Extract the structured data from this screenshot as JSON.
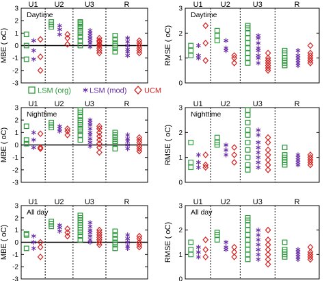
{
  "chart_data": {
    "type": "scatter",
    "groups": [
      "U1",
      "U2",
      "U3",
      "R"
    ],
    "series": [
      {
        "name": "LSM (org)",
        "marker": "square",
        "color": "#2a9a3a"
      },
      {
        "name": "LSM (mod)",
        "marker": "asterisk",
        "color": "#6a2fa8"
      },
      {
        "name": "UCM",
        "marker": "diamond",
        "color": "#d42020"
      }
    ],
    "panels": [
      {
        "id": "mbe-day",
        "metric": "MBE",
        "period": "Daytime",
        "ylabel": "MBE ( oC)",
        "ylim": [
          -3,
          3
        ],
        "yticks": [
          "-3",
          "-2",
          "-1",
          "0",
          "1",
          "2",
          "3"
        ],
        "zero_line": true,
        "points": {
          "U1": {
            "org": [
              0.9,
              0.0,
              -1.1
            ],
            "mod": [
              0.4,
              -0.4,
              -1.1
            ],
            "ucm": [
              0.5,
              -0.9,
              -2.0
            ]
          },
          "U2": {
            "org": [
              1.9,
              1.7,
              1.5
            ],
            "mod": [
              1.6,
              1.3,
              0.9
            ],
            "ucm": [
              0.9,
              0.6,
              0.1
            ]
          },
          "U3": {
            "org": [
              1.9,
              1.8,
              1.7,
              1.5,
              1.2,
              1.0,
              0.7,
              0.4,
              0.0
            ],
            "mod": [
              1.2,
              1.0,
              0.8,
              0.6,
              0.4,
              0.2,
              -0.1
            ],
            "ucm": [
              0.6,
              0.4,
              0.3,
              0.1,
              0.0,
              -0.2,
              -0.4,
              -0.6
            ]
          },
          "R": {
            "org": [
              0.8,
              0.5,
              0.2,
              0.0,
              -0.2,
              -0.5
            ],
            "mod": [
              0.6,
              0.3,
              0.0,
              -0.3,
              -0.5,
              -0.8
            ],
            "ucm": [
              0.4,
              0.2,
              0.0,
              -0.2,
              -0.4,
              -0.6
            ]
          }
        }
      },
      {
        "id": "rmse-day",
        "metric": "RMSE",
        "period": "Daytime",
        "ylabel": "RMSE ( oC)",
        "ylim": [
          0,
          3
        ],
        "yticks": [
          "0",
          "1",
          "2",
          "3"
        ],
        "zero_line": false,
        "points": {
          "U1": {
            "org": [
              1.5,
              1.3,
              1.1
            ],
            "mod": [
              1.5,
              1.1,
              1.0
            ],
            "ucm": [
              2.3,
              1.6,
              0.9
            ]
          },
          "U2": {
            "org": [
              2.1,
              1.9,
              1.7
            ],
            "mod": [
              1.7,
              1.4,
              1.3
            ],
            "ucm": [
              1.1,
              1.0,
              0.8
            ]
          },
          "U3": {
            "org": [
              2.3,
              2.2,
              2.0,
              1.8,
              1.6,
              1.4,
              1.2,
              1.0,
              0.8
            ],
            "mod": [
              1.9,
              1.8,
              1.6,
              1.4,
              1.3,
              1.1,
              1.0,
              0.8
            ],
            "ucm": [
              1.2,
              1.0,
              0.9,
              0.8,
              0.7,
              0.6,
              0.5
            ]
          },
          "R": {
            "org": [
              1.3,
              1.2,
              1.0,
              0.9,
              0.8,
              0.7
            ],
            "mod": [
              1.3,
              1.1,
              1.0,
              0.9,
              0.8,
              0.7
            ],
            "ucm": [
              1.5,
              1.2,
              1.1,
              1.0,
              0.9,
              0.8
            ]
          }
        }
      },
      {
        "id": "mbe-night",
        "metric": "MBE",
        "period": "Nighttime",
        "ylabel": "MBE ( oC)",
        "ylim": [
          -3,
          3
        ],
        "yticks": [
          "-3",
          "-2",
          "-1",
          "0",
          "1",
          "2",
          "3"
        ],
        "zero_line": true,
        "points": {
          "U1": {
            "org": [
              1.5,
              0.4,
              0.1
            ],
            "mod": [
              1.0,
              0.4,
              -0.2
            ],
            "ucm": [
              0.9,
              -0.2,
              -0.3
            ]
          },
          "U2": {
            "org": [
              1.8,
              1.6,
              1.4
            ],
            "mod": [
              1.5,
              1.3,
              1.1
            ],
            "ucm": [
              1.3,
              1.1,
              0.8
            ]
          },
          "U3": {
            "org": [
              2.8,
              2.6,
              2.3,
              2.0,
              1.8,
              1.6,
              1.3,
              1.1,
              0.8,
              0.4
            ],
            "mod": [
              2.0,
              1.8,
              1.6,
              1.3,
              1.0,
              0.8,
              0.5,
              0.2,
              -0.1
            ],
            "ucm": [
              1.5,
              1.3,
              1.0,
              0.7,
              0.4,
              0.1,
              -0.2,
              -0.6
            ]
          },
          "R": {
            "org": [
              1.0,
              0.8,
              0.6,
              0.3,
              0.1,
              -0.3
            ],
            "mod": [
              0.8,
              0.5,
              0.3,
              0.0,
              -0.3
            ],
            "ucm": [
              0.6,
              0.4,
              0.2,
              -0.1,
              -0.3,
              -0.5
            ]
          }
        }
      },
      {
        "id": "rmse-night",
        "metric": "RMSE",
        "period": "Nighttime",
        "ylabel": "RMSE ( oC)",
        "ylim": [
          0,
          3
        ],
        "yticks": [
          "0",
          "1",
          "2",
          "3"
        ],
        "zero_line": false,
        "points": {
          "U1": {
            "org": [
              1.6,
              0.8,
              0.6
            ],
            "mod": [
              1.1,
              0.8,
              0.6
            ],
            "ucm": [
              1.1,
              0.7,
              0.6
            ]
          },
          "U2": {
            "org": [
              1.8,
              1.6,
              1.5
            ],
            "mod": [
              1.5,
              1.3,
              1.1
            ],
            "ucm": [
              1.4,
              1.1,
              0.8
            ]
          },
          "U3": {
            "org": [
              2.9,
              2.7,
              2.4,
              2.1,
              1.9,
              1.6,
              1.3,
              1.0,
              0.7,
              0.5
            ],
            "mod": [
              2.1,
              1.9,
              1.6,
              1.4,
              1.2,
              1.0,
              0.8,
              0.6
            ],
            "ucm": [
              1.8,
              1.6,
              1.3,
              1.1,
              0.9,
              0.7,
              0.5
            ]
          },
          "R": {
            "org": [
              1.4,
              1.1,
              1.0,
              0.9,
              0.8,
              0.7
            ],
            "mod": [
              1.1,
              1.0,
              0.9,
              0.8,
              0.7
            ],
            "ucm": [
              1.1,
              1.0,
              0.9,
              0.8,
              0.7
            ]
          }
        }
      },
      {
        "id": "mbe-all",
        "metric": "MBE",
        "period": "All day",
        "ylabel": "MBE ( oC)",
        "ylim": [
          -3,
          3
        ],
        "yticks": [
          "-3",
          "-2",
          "-1",
          "0",
          "1",
          "2",
          "3"
        ],
        "zero_line": true,
        "points": {
          "U1": {
            "org": [
              0.7,
              0.6,
              -0.5
            ],
            "mod": [
              0.5,
              0.0,
              -0.5
            ],
            "ucm": [
              0.0,
              -0.4,
              -1.2
            ]
          },
          "U2": {
            "org": [
              1.7,
              1.5,
              1.3
            ],
            "mod": [
              1.4,
              1.2,
              0.9
            ],
            "ucm": [
              1.1,
              0.8,
              0.5
            ]
          },
          "U3": {
            "org": [
              2.2,
              2.0,
              1.8,
              1.6,
              1.4,
              1.2,
              1.0,
              0.8,
              0.5,
              0.2
            ],
            "mod": [
              1.6,
              1.3,
              1.0,
              0.8,
              0.5,
              0.2,
              0.0
            ],
            "ucm": [
              1.0,
              0.8,
              0.6,
              0.4,
              0.2,
              0.0,
              -0.2
            ]
          },
          "R": {
            "org": [
              0.9,
              0.6,
              0.3,
              0.0,
              -0.2,
              -0.5
            ],
            "mod": [
              0.6,
              0.3,
              0.0,
              -0.3,
              -0.5
            ],
            "ucm": [
              0.5,
              0.3,
              0.0,
              -0.2,
              -0.4
            ]
          }
        }
      },
      {
        "id": "rmse-all",
        "metric": "RMSE",
        "period": "All day",
        "ylabel": "RMSE ( oC)",
        "ylim": [
          0,
          3
        ],
        "yticks": [
          "0",
          "1",
          "2",
          "3"
        ],
        "zero_line": false,
        "points": {
          "U1": {
            "org": [
              1.5,
              1.2,
              1.0
            ],
            "mod": [
              1.3,
              1.1,
              0.9
            ],
            "ucm": [
              1.6,
              1.2,
              0.9
            ]
          },
          "U2": {
            "org": [
              1.9,
              1.8,
              1.6
            ],
            "mod": [
              1.5,
              1.3,
              1.2
            ],
            "ucm": [
              1.3,
              1.1,
              0.9
            ]
          },
          "U3": {
            "org": [
              2.5,
              2.4,
              2.2,
              2.0,
              1.8,
              1.6,
              1.4,
              1.2,
              1.0,
              0.8
            ],
            "mod": [
              2.0,
              1.8,
              1.6,
              1.4,
              1.2,
              1.0,
              0.8
            ],
            "ucm": [
              2.0,
              1.6,
              1.4,
              1.2,
              1.0,
              0.8,
              0.6
            ]
          },
          "R": {
            "org": [
              1.5,
              1.2,
              1.1,
              1.0,
              0.9
            ],
            "mod": [
              1.2,
              1.1,
              1.0,
              0.9,
              0.8
            ],
            "ucm": [
              1.3,
              1.1,
              1.0,
              0.9,
              0.8
            ]
          }
        }
      }
    ]
  }
}
